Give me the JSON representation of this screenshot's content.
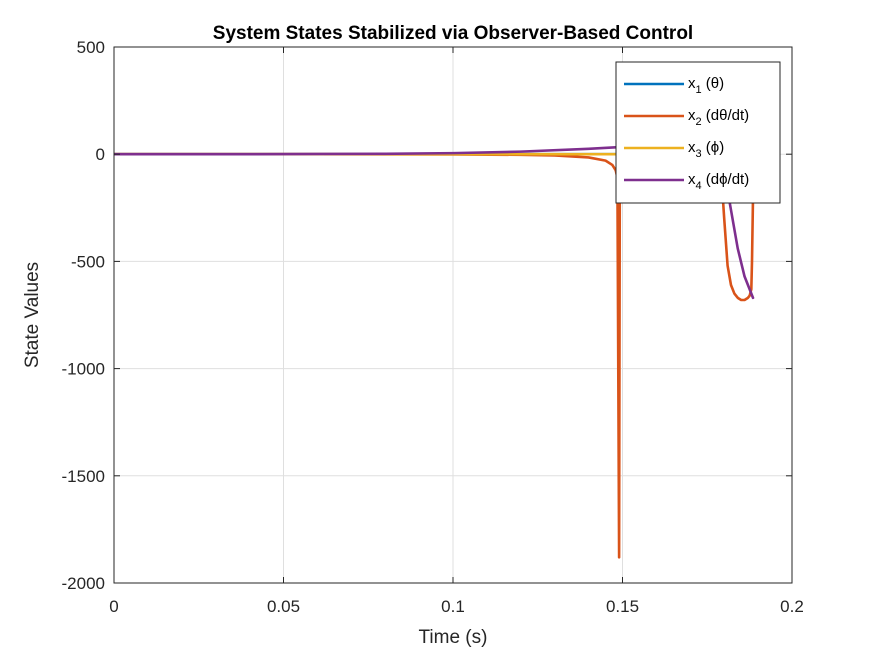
{
  "chart_data": {
    "type": "line",
    "title": "System States Stabilized via Observer-Based Control",
    "xlabel": "Time (s)",
    "ylabel": "State Values",
    "xlim": [
      0,
      0.2
    ],
    "ylim": [
      -2000,
      500
    ],
    "xticks": [
      0,
      0.05,
      0.1,
      0.15,
      0.2
    ],
    "xtick_labels": [
      "0",
      "0.05",
      "0.1",
      "0.15",
      "0.2"
    ],
    "yticks": [
      500,
      0,
      -500,
      -1000,
      -1500,
      -2000
    ],
    "ytick_labels": [
      "500",
      "0",
      "-500",
      "-1000",
      "-1500",
      "-2000"
    ],
    "grid": true,
    "legend_position": "top-right",
    "series": [
      {
        "name": "x_1 (θ)",
        "legend_main": "x",
        "legend_sub": "1",
        "legend_rest": " (θ)",
        "color": "#0072BD",
        "x": [
          0,
          0.04,
          0.08,
          0.1,
          0.12,
          0.14,
          0.15,
          0.16,
          0.17,
          0.18,
          0.185,
          0.1885
        ],
        "y": [
          0,
          0,
          0,
          0,
          0,
          0,
          0,
          0,
          0,
          0,
          0,
          0
        ]
      },
      {
        "name": "x_2 (dθ/dt)",
        "legend_main": "x",
        "legend_sub": "2",
        "legend_rest": " (dθ/dt)",
        "color": "#D95319",
        "x": [
          0,
          0.06,
          0.1,
          0.12,
          0.13,
          0.14,
          0.145,
          0.147,
          0.148,
          0.1485,
          0.149,
          0.1492,
          0.1494,
          0.15,
          0.155,
          0.16,
          0.165,
          0.17,
          0.175,
          0.178,
          0.179,
          0.18,
          0.181,
          0.182,
          0.183,
          0.184,
          0.185,
          0.186,
          0.187,
          0.1875,
          0.188,
          0.1882,
          0.1885,
          0.1887
        ],
        "y": [
          0,
          0,
          -1,
          -3,
          -6,
          -15,
          -30,
          -50,
          -75,
          -110,
          -1880,
          -150,
          0,
          0,
          0,
          0,
          0,
          0,
          0,
          -5,
          -60,
          -300,
          -520,
          -610,
          -650,
          -670,
          -680,
          -680,
          -670,
          -660,
          -630,
          -500,
          -200,
          -100
        ]
      },
      {
        "name": "x_3 (ϕ)",
        "legend_main": "x",
        "legend_sub": "3",
        "legend_rest": " (ϕ)",
        "color": "#EDB120",
        "x": [
          0,
          0.04,
          0.08,
          0.1,
          0.12,
          0.14,
          0.15,
          0.16,
          0.17,
          0.175,
          0.178,
          0.18,
          0.182,
          0.184,
          0.186,
          0.1885
        ],
        "y": [
          0,
          0,
          0,
          0,
          0,
          0,
          0,
          0,
          0,
          0,
          -2,
          -5,
          -8,
          -12,
          -15,
          -18
        ]
      },
      {
        "name": "x_4 (dϕ/dt)",
        "legend_main": "x",
        "legend_sub": "4",
        "legend_rest": " (dϕ/dt)",
        "color": "#7E2F8E",
        "x": [
          0,
          0.04,
          0.08,
          0.1,
          0.12,
          0.14,
          0.15,
          0.155,
          0.16,
          0.165,
          0.17,
          0.175,
          0.178,
          0.18,
          0.182,
          0.184,
          0.186,
          0.1885
        ],
        "y": [
          0,
          0,
          2,
          5,
          12,
          25,
          34,
          38,
          42,
          43,
          38,
          20,
          0,
          -80,
          -260,
          -440,
          -570,
          -670
        ]
      }
    ]
  }
}
